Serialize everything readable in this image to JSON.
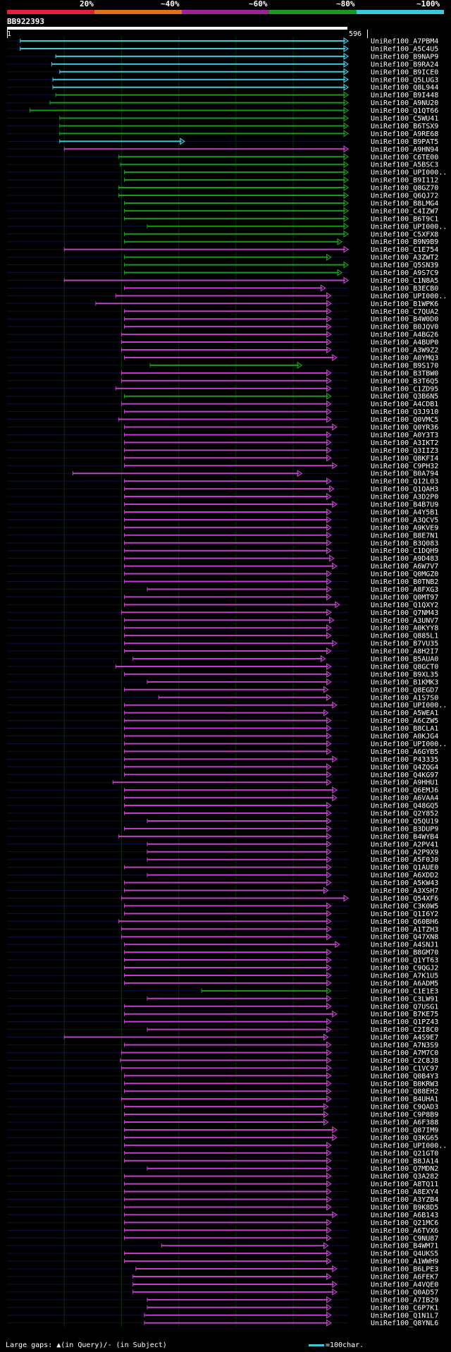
{
  "scale": {
    "labels": [
      "20%",
      "~40%",
      "~60%",
      "~80%",
      "~100%"
    ]
  },
  "colors": {
    "red": "#e0203c",
    "orange": "#e0701a",
    "purple": "#a0209a",
    "green": "#1a9a1a",
    "cyan": "#3ec8d8",
    "magenta": "#c040c8",
    "grid": "#003300"
  },
  "query": {
    "name": "BB922393",
    "start": "1",
    "end": "596"
  },
  "query_length": 596,
  "hits": [
    {
      "id": "UniRef100_A7PBM4",
      "s": 23,
      "e": 596,
      "c": "cyan"
    },
    {
      "id": "UniRef100_A5C4U5",
      "s": 23,
      "e": 596,
      "c": "cyan"
    },
    {
      "id": "UniRef100_B9NAP9",
      "s": 85,
      "e": 596,
      "c": "cyan"
    },
    {
      "id": "UniRef100_B9RA24",
      "s": 78,
      "e": 596,
      "c": "cyan"
    },
    {
      "id": "UniRef100_B9ICE0",
      "s": 92,
      "e": 596,
      "c": "cyan"
    },
    {
      "id": "UniRef100_Q5LUG3",
      "s": 80,
      "e": 596,
      "c": "cyan"
    },
    {
      "id": "UniRef100_Q8L944",
      "s": 80,
      "e": 596,
      "c": "cyan"
    },
    {
      "id": "UniRef100_B9I448",
      "s": 85,
      "e": 596,
      "c": "green"
    },
    {
      "id": "UniRef100_A9NU20",
      "s": 75,
      "e": 596,
      "c": "green"
    },
    {
      "id": "UniRef100_Q1QT66",
      "s": 40,
      "e": 596,
      "c": "green"
    },
    {
      "id": "UniRef100_C5WU41",
      "s": 92,
      "e": 596,
      "c": "green"
    },
    {
      "id": "UniRef100_B6TSX9",
      "s": 92,
      "e": 596,
      "c": "green"
    },
    {
      "id": "UniRef100_A9RE68",
      "s": 92,
      "e": 596,
      "c": "green"
    },
    {
      "id": "UniRef100_B9PAT5",
      "s": 92,
      "e": 310,
      "c": "cyan"
    },
    {
      "id": "UniRef100_A9HN94",
      "s": 100,
      "e": 596,
      "c": "magenta"
    },
    {
      "id": "UniRef100_C6TE00",
      "s": 195,
      "e": 596,
      "c": "green"
    },
    {
      "id": "UniRef100_A5BSC3",
      "s": 198,
      "e": 596,
      "c": "green"
    },
    {
      "id": "UniRef100_UPI000..",
      "s": 205,
      "e": 596,
      "c": "green"
    },
    {
      "id": "UniRef100_B9I112",
      "s": 205,
      "e": 596,
      "c": "green"
    },
    {
      "id": "UniRef100_Q8GZ70",
      "s": 195,
      "e": 596,
      "c": "green"
    },
    {
      "id": "UniRef100_Q6QJ72",
      "s": 195,
      "e": 596,
      "c": "green"
    },
    {
      "id": "UniRef100_B8LMG4",
      "s": 205,
      "e": 596,
      "c": "green"
    },
    {
      "id": "UniRef100_C4IZW7",
      "s": 205,
      "e": 596,
      "c": "green"
    },
    {
      "id": "UniRef100_B6T9C1",
      "s": 205,
      "e": 596,
      "c": "green"
    },
    {
      "id": "UniRef100_UPI000..",
      "s": 245,
      "e": 596,
      "c": "green"
    },
    {
      "id": "UniRef100_C5XFX8",
      "s": 205,
      "e": 596,
      "c": "green"
    },
    {
      "id": "UniRef100_B9N9B9",
      "s": 205,
      "e": 585,
      "c": "green"
    },
    {
      "id": "UniRef100_C1E754",
      "s": 100,
      "e": 596,
      "c": "magenta"
    },
    {
      "id": "UniRef100_A3ZWT2",
      "s": 205,
      "e": 566,
      "c": "green"
    },
    {
      "id": "UniRef100_Q5SN39",
      "s": 205,
      "e": 596,
      "c": "green"
    },
    {
      "id": "UniRef100_A9S7C9",
      "s": 205,
      "e": 585,
      "c": "green"
    },
    {
      "id": "UniRef100_C1N8A5",
      "s": 100,
      "e": 596,
      "c": "magenta"
    },
    {
      "id": "UniRef100_B3ECB0",
      "s": 205,
      "e": 556,
      "c": "magenta"
    },
    {
      "id": "UniRef100_UPI000..",
      "s": 190,
      "e": 566,
      "c": "magenta"
    },
    {
      "id": "UniRef100_B1WPK6",
      "s": 155,
      "e": 566,
      "c": "magenta"
    },
    {
      "id": "UniRef100_C7QUA2",
      "s": 205,
      "e": 566,
      "c": "magenta"
    },
    {
      "id": "UniRef100_B4W0D0",
      "s": 205,
      "e": 566,
      "c": "magenta"
    },
    {
      "id": "UniRef100_B0JQV0",
      "s": 205,
      "e": 566,
      "c": "magenta"
    },
    {
      "id": "UniRef100_A4BG26",
      "s": 200,
      "e": 566,
      "c": "magenta"
    },
    {
      "id": "UniRef100_A4BUP0",
      "s": 200,
      "e": 566,
      "c": "magenta"
    },
    {
      "id": "UniRef100_A3W9Z2",
      "s": 200,
      "e": 566,
      "c": "magenta"
    },
    {
      "id": "UniRef100_A0YMQ3",
      "s": 205,
      "e": 576,
      "c": "magenta"
    },
    {
      "id": "UniRef100_B9S170",
      "s": 250,
      "e": 515,
      "c": "green"
    },
    {
      "id": "UniRef100_B3TBW0",
      "s": 200,
      "e": 566,
      "c": "magenta"
    },
    {
      "id": "UniRef100_B3T6Q5",
      "s": 200,
      "e": 566,
      "c": "magenta"
    },
    {
      "id": "UniRef100_C1ZD95",
      "s": 190,
      "e": 566,
      "c": "magenta"
    },
    {
      "id": "UniRef100_Q3B6N5",
      "s": 205,
      "e": 566,
      "c": "green"
    },
    {
      "id": "UniRef100_A4CDB1",
      "s": 200,
      "e": 566,
      "c": "magenta"
    },
    {
      "id": "UniRef100_Q3J910",
      "s": 205,
      "e": 566,
      "c": "magenta"
    },
    {
      "id": "UniRef100_Q0VMC5",
      "s": 195,
      "e": 566,
      "c": "magenta"
    },
    {
      "id": "UniRef100_Q0YR36",
      "s": 205,
      "e": 576,
      "c": "magenta"
    },
    {
      "id": "UniRef100_A0Y3T3",
      "s": 205,
      "e": 566,
      "c": "magenta"
    },
    {
      "id": "UniRef100_A3IKT2",
      "s": 205,
      "e": 566,
      "c": "magenta"
    },
    {
      "id": "UniRef100_Q3IIZ3",
      "s": 205,
      "e": 566,
      "c": "magenta"
    },
    {
      "id": "UniRef100_Q8KFI4",
      "s": 205,
      "e": 566,
      "c": "magenta"
    },
    {
      "id": "UniRef100_C9PH32",
      "s": 205,
      "e": 576,
      "c": "magenta"
    },
    {
      "id": "UniRef100_B0A794",
      "s": 115,
      "e": 515,
      "c": "magenta"
    },
    {
      "id": "UniRef100_Q12L03",
      "s": 205,
      "e": 566,
      "c": "magenta"
    },
    {
      "id": "UniRef100_Q1QAH3",
      "s": 205,
      "e": 571,
      "c": "magenta"
    },
    {
      "id": "UniRef100_A3D2P0",
      "s": 205,
      "e": 566,
      "c": "magenta"
    },
    {
      "id": "UniRef100_B4B7U9",
      "s": 205,
      "e": 576,
      "c": "magenta"
    },
    {
      "id": "UniRef100_A4Y5B1",
      "s": 205,
      "e": 566,
      "c": "magenta"
    },
    {
      "id": "UniRef100_A3QCV5",
      "s": 205,
      "e": 566,
      "c": "magenta"
    },
    {
      "id": "UniRef100_A9KVE9",
      "s": 205,
      "e": 566,
      "c": "magenta"
    },
    {
      "id": "UniRef100_B8E7N1",
      "s": 205,
      "e": 566,
      "c": "magenta"
    },
    {
      "id": "UniRef100_B3Q083",
      "s": 205,
      "e": 566,
      "c": "magenta"
    },
    {
      "id": "UniRef100_C1DQH9",
      "s": 205,
      "e": 566,
      "c": "magenta"
    },
    {
      "id": "UniRef100_A9D483",
      "s": 205,
      "e": 571,
      "c": "magenta"
    },
    {
      "id": "UniRef100_A6W7V7",
      "s": 205,
      "e": 576,
      "c": "magenta"
    },
    {
      "id": "UniRef100_Q0MGZ0",
      "s": 205,
      "e": 566,
      "c": "magenta"
    },
    {
      "id": "UniRef100_B0TNB2",
      "s": 205,
      "e": 566,
      "c": "magenta"
    },
    {
      "id": "UniRef100_A8FXG3",
      "s": 245,
      "e": 566,
      "c": "magenta"
    },
    {
      "id": "UniRef100_Q0MT97",
      "s": 205,
      "e": 566,
      "c": "magenta"
    },
    {
      "id": "UniRef100_Q1QXY2",
      "s": 205,
      "e": 581,
      "c": "magenta"
    },
    {
      "id": "UniRef100_Q7NM43",
      "s": 200,
      "e": 566,
      "c": "magenta"
    },
    {
      "id": "UniRef100_A3UNV7",
      "s": 205,
      "e": 571,
      "c": "magenta"
    },
    {
      "id": "UniRef100_A0KYY8",
      "s": 205,
      "e": 566,
      "c": "magenta"
    },
    {
      "id": "UniRef100_Q885L1",
      "s": 205,
      "e": 566,
      "c": "magenta"
    },
    {
      "id": "UniRef100_B7VU35",
      "s": 205,
      "e": 576,
      "c": "magenta"
    },
    {
      "id": "UniRef100_A8H2I7",
      "s": 205,
      "e": 566,
      "c": "magenta"
    },
    {
      "id": "UniRef100_B5AUA0",
      "s": 220,
      "e": 556,
      "c": "magenta"
    },
    {
      "id": "UniRef100_Q8GCT0",
      "s": 190,
      "e": 566,
      "c": "magenta"
    },
    {
      "id": "UniRef100_B9XL35",
      "s": 205,
      "e": 566,
      "c": "magenta"
    },
    {
      "id": "UniRef100_B1KMK3",
      "s": 245,
      "e": 566,
      "c": "magenta"
    },
    {
      "id": "UniRef100_Q8EGD7",
      "s": 205,
      "e": 561,
      "c": "magenta"
    },
    {
      "id": "UniRef100_A1S7S0",
      "s": 265,
      "e": 566,
      "c": "magenta"
    },
    {
      "id": "UniRef100_UPI000..",
      "s": 205,
      "e": 576,
      "c": "magenta"
    },
    {
      "id": "UniRef100_A5WEA1",
      "s": 205,
      "e": 561,
      "c": "magenta"
    },
    {
      "id": "UniRef100_A6CZW5",
      "s": 205,
      "e": 566,
      "c": "magenta"
    },
    {
      "id": "UniRef100_B8CLA1",
      "s": 205,
      "e": 566,
      "c": "magenta"
    },
    {
      "id": "UniRef100_A0KJG4",
      "s": 205,
      "e": 566,
      "c": "magenta"
    },
    {
      "id": "UniRef100_UPI000..",
      "s": 205,
      "e": 566,
      "c": "magenta"
    },
    {
      "id": "UniRef100_A6GYB5",
      "s": 205,
      "e": 566,
      "c": "magenta"
    },
    {
      "id": "UniRef100_P43335",
      "s": 205,
      "e": 576,
      "c": "magenta"
    },
    {
      "id": "UniRef100_Q4ZQG4",
      "s": 205,
      "e": 566,
      "c": "magenta"
    },
    {
      "id": "UniRef100_Q4KG97",
      "s": 205,
      "e": 566,
      "c": "magenta"
    },
    {
      "id": "UniRef100_A9HHU1",
      "s": 185,
      "e": 566,
      "c": "magenta"
    },
    {
      "id": "UniRef100_Q6EMJ6",
      "s": 205,
      "e": 576,
      "c": "magenta"
    },
    {
      "id": "UniRef100_A6VAA4",
      "s": 205,
      "e": 576,
      "c": "magenta"
    },
    {
      "id": "UniRef100_Q48GQ5",
      "s": 205,
      "e": 566,
      "c": "magenta"
    },
    {
      "id": "UniRef100_Q2Y852",
      "s": 205,
      "e": 566,
      "c": "magenta"
    },
    {
      "id": "UniRef100_Q5QU19",
      "s": 245,
      "e": 566,
      "c": "magenta"
    },
    {
      "id": "UniRef100_B3DUP9",
      "s": 205,
      "e": 566,
      "c": "magenta"
    },
    {
      "id": "UniRef100_B4WYB4",
      "s": 195,
      "e": 566,
      "c": "magenta"
    },
    {
      "id": "UniRef100_A2PV41",
      "s": 245,
      "e": 566,
      "c": "magenta"
    },
    {
      "id": "UniRef100_A2P9X9",
      "s": 245,
      "e": 566,
      "c": "magenta"
    },
    {
      "id": "UniRef100_A5F0J0",
      "s": 245,
      "e": 566,
      "c": "magenta"
    },
    {
      "id": "UniRef100_Q1AUE0",
      "s": 205,
      "e": 566,
      "c": "magenta"
    },
    {
      "id": "UniRef100_A6XDD2",
      "s": 245,
      "e": 566,
      "c": "magenta"
    },
    {
      "id": "UniRef100_A5KW43",
      "s": 205,
      "e": 566,
      "c": "magenta"
    },
    {
      "id": "UniRef100_A3XSH7",
      "s": 205,
      "e": 561,
      "c": "magenta"
    },
    {
      "id": "UniRef100_Q54XF6",
      "s": 200,
      "e": 596,
      "c": "magenta"
    },
    {
      "id": "UniRef100_C3K0W5",
      "s": 205,
      "e": 566,
      "c": "magenta"
    },
    {
      "id": "UniRef100_Q1I6Y2",
      "s": 205,
      "e": 566,
      "c": "magenta"
    },
    {
      "id": "UniRef100_Q60BH6",
      "s": 195,
      "e": 566,
      "c": "magenta"
    },
    {
      "id": "UniRef100_A1TZH3",
      "s": 200,
      "e": 566,
      "c": "magenta"
    },
    {
      "id": "UniRef100_Q47XN8",
      "s": 200,
      "e": 566,
      "c": "magenta"
    },
    {
      "id": "UniRef100_A4SNJ1",
      "s": 205,
      "e": 581,
      "c": "magenta"
    },
    {
      "id": "UniRef100_B8GM70",
      "s": 205,
      "e": 566,
      "c": "magenta"
    },
    {
      "id": "UniRef100_Q1YT63",
      "s": 205,
      "e": 566,
      "c": "magenta"
    },
    {
      "id": "UniRef100_C9QGJ2",
      "s": 205,
      "e": 566,
      "c": "magenta"
    },
    {
      "id": "UniRef100_A7K1U5",
      "s": 205,
      "e": 566,
      "c": "magenta"
    },
    {
      "id": "UniRef100_A6ADM5",
      "s": 205,
      "e": 566,
      "c": "magenta"
    },
    {
      "id": "UniRef100_C1E1E3",
      "s": 340,
      "e": 566,
      "c": "green"
    },
    {
      "id": "UniRef100_C3LW91",
      "s": 245,
      "e": 566,
      "c": "magenta"
    },
    {
      "id": "UniRef100_Q7USG1",
      "s": 205,
      "e": 566,
      "c": "magenta"
    },
    {
      "id": "UniRef100_B7KE75",
      "s": 205,
      "e": 576,
      "c": "magenta"
    },
    {
      "id": "UniRef100_Q1PZ43",
      "s": 205,
      "e": 566,
      "c": "magenta"
    },
    {
      "id": "UniRef100_C2I8C0",
      "s": 245,
      "e": 566,
      "c": "magenta"
    },
    {
      "id": "UniRef100_A4S9E7",
      "s": 100,
      "e": 561,
      "c": "magenta"
    },
    {
      "id": "UniRef100_A7N3S9",
      "s": 205,
      "e": 566,
      "c": "magenta"
    },
    {
      "id": "UniRef100_A7M7C0",
      "s": 200,
      "e": 566,
      "c": "magenta"
    },
    {
      "id": "UniRef100_C2C8J8",
      "s": 198,
      "e": 566,
      "c": "magenta"
    },
    {
      "id": "UniRef100_C1VC97",
      "s": 200,
      "e": 566,
      "c": "magenta"
    },
    {
      "id": "UniRef100_Q0B4Y3",
      "s": 205,
      "e": 566,
      "c": "magenta"
    },
    {
      "id": "UniRef100_B0KRW3",
      "s": 205,
      "e": 566,
      "c": "magenta"
    },
    {
      "id": "UniRef100_Q88EH2",
      "s": 205,
      "e": 566,
      "c": "magenta"
    },
    {
      "id": "UniRef100_B4UHA1",
      "s": 200,
      "e": 566,
      "c": "magenta"
    },
    {
      "id": "UniRef100_C9QAD3",
      "s": 205,
      "e": 561,
      "c": "magenta"
    },
    {
      "id": "UniRef100_C9P8B9",
      "s": 205,
      "e": 561,
      "c": "magenta"
    },
    {
      "id": "UniRef100_A6F388",
      "s": 205,
      "e": 561,
      "c": "magenta"
    },
    {
      "id": "UniRef100_Q87IM9",
      "s": 205,
      "e": 576,
      "c": "magenta"
    },
    {
      "id": "UniRef100_Q3KG65",
      "s": 205,
      "e": 576,
      "c": "magenta"
    },
    {
      "id": "UniRef100_UPI000..",
      "s": 205,
      "e": 566,
      "c": "magenta"
    },
    {
      "id": "UniRef100_Q21GT0",
      "s": 205,
      "e": 566,
      "c": "magenta"
    },
    {
      "id": "UniRef100_B8JA14",
      "s": 205,
      "e": 566,
      "c": "magenta"
    },
    {
      "id": "UniRef100_Q7MDN2",
      "s": 245,
      "e": 566,
      "c": "magenta"
    },
    {
      "id": "UniRef100_Q3A282",
      "s": 205,
      "e": 566,
      "c": "magenta"
    },
    {
      "id": "UniRef100_A8TQ11",
      "s": 205,
      "e": 566,
      "c": "magenta"
    },
    {
      "id": "UniRef100_A8EXY4",
      "s": 205,
      "e": 566,
      "c": "magenta"
    },
    {
      "id": "UniRef100_A3YZB4",
      "s": 205,
      "e": 566,
      "c": "magenta"
    },
    {
      "id": "UniRef100_B9K8D5",
      "s": 205,
      "e": 566,
      "c": "magenta"
    },
    {
      "id": "UniRef100_A6B143",
      "s": 205,
      "e": 576,
      "c": "magenta"
    },
    {
      "id": "UniRef100_Q21MC6",
      "s": 205,
      "e": 566,
      "c": "magenta"
    },
    {
      "id": "UniRef100_A6TVX6",
      "s": 205,
      "e": 566,
      "c": "magenta"
    },
    {
      "id": "UniRef100_C9NU87",
      "s": 205,
      "e": 566,
      "c": "magenta"
    },
    {
      "id": "UniRef100_B4WM71",
      "s": 270,
      "e": 561,
      "c": "magenta"
    },
    {
      "id": "UniRef100_Q4UKS5",
      "s": 205,
      "e": 566,
      "c": "magenta"
    },
    {
      "id": "UniRef100_A1WWH9",
      "s": 205,
      "e": 566,
      "c": "magenta"
    },
    {
      "id": "UniRef100_B6LPE3",
      "s": 225,
      "e": 576,
      "c": "magenta"
    },
    {
      "id": "UniRef100_A6FEK7",
      "s": 220,
      "e": 566,
      "c": "magenta"
    },
    {
      "id": "UniRef100_A4VQE0",
      "s": 220,
      "e": 576,
      "c": "magenta"
    },
    {
      "id": "UniRef100_Q0AD57",
      "s": 220,
      "e": 576,
      "c": "magenta"
    },
    {
      "id": "UniRef100_A7IB29",
      "s": 245,
      "e": 566,
      "c": "magenta"
    },
    {
      "id": "UniRef100_C6P7K1",
      "s": 245,
      "e": 566,
      "c": "magenta"
    },
    {
      "id": "UniRef100_Q1N1L7",
      "s": 240,
      "e": 566,
      "c": "magenta"
    },
    {
      "id": "UniRef100_Q8YNL6",
      "s": 240,
      "e": 566,
      "c": "magenta"
    }
  ],
  "footer": {
    "gaps_text": "Large gaps: ▲(in Query)/- (in Subject)",
    "legend_text": "=100char."
  }
}
